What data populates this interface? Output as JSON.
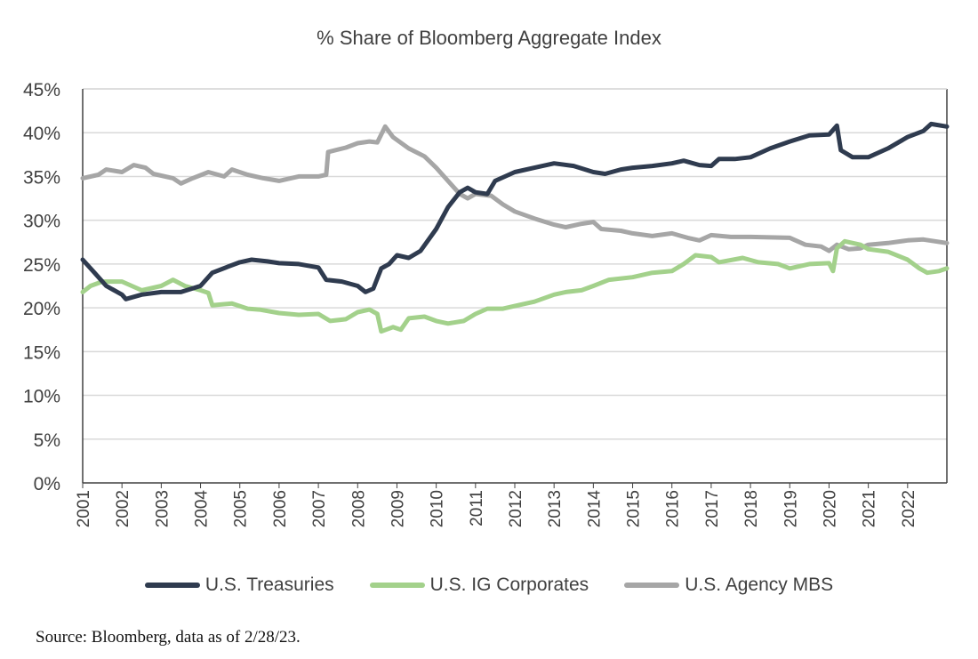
{
  "chart_data": {
    "type": "line",
    "title": "% Share of Bloomberg Aggregate Index",
    "xlabel": "",
    "ylabel": "",
    "xlim": [
      2001,
      2023
    ],
    "ylim": [
      0,
      45
    ],
    "y_ticks": [
      "0%",
      "5%",
      "10%",
      "15%",
      "20%",
      "25%",
      "30%",
      "35%",
      "40%",
      "45%"
    ],
    "x_ticks": [
      "2001",
      "2002",
      "2003",
      "2004",
      "2005",
      "2006",
      "2007",
      "2008",
      "2009",
      "2010",
      "2011",
      "2012",
      "2013",
      "2014",
      "2015",
      "2016",
      "2017",
      "2018",
      "2019",
      "2020",
      "2021",
      "2022"
    ],
    "grid": "horizontal",
    "legend": "bottom",
    "series": [
      {
        "name": "U.S. Treasuries",
        "color": "#2f3b4f",
        "x": [
          2001.0,
          2001.3,
          2001.6,
          2002.0,
          2002.1,
          2002.5,
          2003.0,
          2003.5,
          2004.0,
          2004.3,
          2004.7,
          2005.0,
          2005.3,
          2005.7,
          2006.0,
          2006.5,
          2007.0,
          2007.2,
          2007.6,
          2008.0,
          2008.2,
          2008.4,
          2008.6,
          2008.8,
          2009.0,
          2009.3,
          2009.6,
          2010.0,
          2010.3,
          2010.6,
          2010.8,
          2011.0,
          2011.3,
          2011.5,
          2012.0,
          2012.5,
          2013.0,
          2013.5,
          2014.0,
          2014.3,
          2014.7,
          2015.0,
          2015.5,
          2016.0,
          2016.3,
          2016.7,
          2017.0,
          2017.2,
          2017.6,
          2018.0,
          2018.5,
          2019.0,
          2019.5,
          2020.0,
          2020.2,
          2020.3,
          2020.6,
          2021.0,
          2021.5,
          2022.0,
          2022.4,
          2022.6,
          2023.0
        ],
        "y": [
          25.5,
          24,
          22.5,
          21.5,
          21,
          21.5,
          21.8,
          21.8,
          22.5,
          24,
          24.7,
          25.2,
          25.5,
          25.3,
          25.1,
          25,
          24.6,
          23.2,
          23,
          22.5,
          21.8,
          22.2,
          24.5,
          25,
          26,
          25.7,
          26.5,
          29,
          31.5,
          33.2,
          33.7,
          33.2,
          33,
          34.5,
          35.5,
          36,
          36.5,
          36.2,
          35.5,
          35.3,
          35.8,
          36,
          36.2,
          36.5,
          36.8,
          36.3,
          36.2,
          37,
          37,
          37.2,
          38.2,
          39,
          39.7,
          39.8,
          40.8,
          38,
          37.2,
          37.2,
          38.2,
          39.5,
          40.2,
          41,
          40.7
        ]
      },
      {
        "name": "U.S. IG Corporates",
        "color": "#a3d18b",
        "x": [
          2001.0,
          2001.2,
          2001.5,
          2002.0,
          2002.5,
          2003.0,
          2003.3,
          2003.6,
          2004.0,
          2004.2,
          2004.3,
          2004.8,
          2005.2,
          2005.5,
          2006.0,
          2006.5,
          2007.0,
          2007.3,
          2007.7,
          2008.0,
          2008.3,
          2008.5,
          2008.6,
          2008.9,
          2009.1,
          2009.3,
          2009.7,
          2010.0,
          2010.3,
          2010.7,
          2011.0,
          2011.3,
          2011.7,
          2012.0,
          2012.5,
          2013.0,
          2013.3,
          2013.7,
          2014.0,
          2014.4,
          2015.0,
          2015.5,
          2016.0,
          2016.3,
          2016.6,
          2017.0,
          2017.2,
          2017.8,
          2018.2,
          2018.7,
          2019.0,
          2019.5,
          2020.0,
          2020.1,
          2020.2,
          2020.4,
          2020.8,
          2021.0,
          2021.5,
          2022.0,
          2022.3,
          2022.5,
          2022.8,
          2023.0
        ],
        "y": [
          21.8,
          22.5,
          23,
          23,
          22,
          22.5,
          23.2,
          22.5,
          22,
          21.7,
          20.3,
          20.5,
          19.9,
          19.8,
          19.4,
          19.2,
          19.3,
          18.5,
          18.7,
          19.5,
          19.8,
          19.3,
          17.3,
          17.8,
          17.5,
          18.8,
          19,
          18.5,
          18.2,
          18.5,
          19.3,
          19.9,
          19.9,
          20.2,
          20.7,
          21.5,
          21.8,
          22,
          22.5,
          23.2,
          23.5,
          24,
          24.2,
          25,
          26,
          25.8,
          25.2,
          25.7,
          25.2,
          25,
          24.5,
          25,
          25.1,
          24.2,
          26.8,
          27.6,
          27.2,
          26.7,
          26.4,
          25.5,
          24.5,
          24,
          24.2,
          24.5
        ]
      },
      {
        "name": "U.S. Agency MBS",
        "color": "#a6a6a6",
        "x": [
          2001.0,
          2001.4,
          2001.6,
          2002.0,
          2002.3,
          2002.6,
          2002.8,
          2003.3,
          2003.5,
          2003.8,
          2004.2,
          2004.6,
          2004.8,
          2005.2,
          2005.6,
          2006.0,
          2006.5,
          2007.0,
          2007.2,
          2007.25,
          2007.7,
          2008.0,
          2008.3,
          2008.5,
          2008.7,
          2008.9,
          2009.3,
          2009.7,
          2010.0,
          2010.3,
          2010.6,
          2010.8,
          2011.0,
          2011.4,
          2011.7,
          2012.0,
          2012.5,
          2013.0,
          2013.3,
          2013.7,
          2014.0,
          2014.2,
          2014.7,
          2015.0,
          2015.5,
          2016.0,
          2016.4,
          2016.7,
          2017.0,
          2017.5,
          2018.0,
          2019.0,
          2019.4,
          2019.8,
          2020.0,
          2020.2,
          2020.5,
          2020.8,
          2021.0,
          2021.5,
          2022.0,
          2022.4,
          2022.7,
          2023.0
        ],
        "y": [
          34.8,
          35.2,
          35.8,
          35.5,
          36.3,
          36,
          35.3,
          34.8,
          34.2,
          34.8,
          35.5,
          35,
          35.8,
          35.2,
          34.8,
          34.5,
          35,
          35,
          35.2,
          37.8,
          38.3,
          38.8,
          39,
          38.9,
          40.7,
          39.5,
          38.2,
          37.3,
          36,
          34.5,
          33,
          32.5,
          33,
          32.8,
          31.8,
          31,
          30.2,
          29.5,
          29.2,
          29.6,
          29.8,
          29,
          28.8,
          28.5,
          28.2,
          28.5,
          28,
          27.7,
          28.3,
          28.1,
          28.1,
          28,
          27.2,
          27,
          26.5,
          27.2,
          26.7,
          26.8,
          27.2,
          27.4,
          27.7,
          27.8,
          27.6,
          27.4
        ]
      }
    ]
  },
  "source": "Source: Bloomberg, data as of 2/28/23."
}
